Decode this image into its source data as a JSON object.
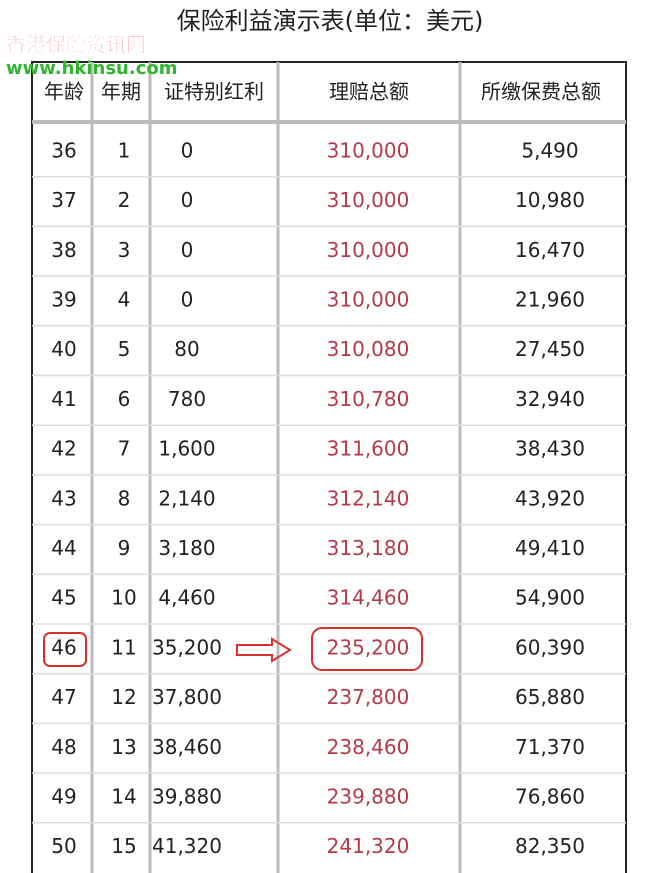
{
  "header": {
    "title": "保险利益演示表(单位：美元)",
    "watermark": "香港保险资讯网",
    "watermark_url": "www.hkinsu.com"
  },
  "table": {
    "columns": [
      "年龄",
      "年期",
      "证特别红利",
      "理赔总额",
      "所缴保费总额"
    ],
    "rows": [
      [
        "36",
        "1",
        "0",
        "310,000",
        "5,490"
      ],
      [
        "37",
        "2",
        "0",
        "310,000",
        "10,980"
      ],
      [
        "38",
        "3",
        "0",
        "310,000",
        "16,470"
      ],
      [
        "39",
        "4",
        "0",
        "310,000",
        "21,960"
      ],
      [
        "40",
        "5",
        "80",
        "310,080",
        "27,450"
      ],
      [
        "41",
        "6",
        "780",
        "310,780",
        "32,940"
      ],
      [
        "42",
        "7",
        "1,600",
        "311,600",
        "38,430"
      ],
      [
        "43",
        "8",
        "2,140",
        "312,140",
        "43,920"
      ],
      [
        "44",
        "9",
        "3,180",
        "313,180",
        "49,410"
      ],
      [
        "45",
        "10",
        "4,460",
        "314,460",
        "54,900"
      ],
      [
        "46",
        "11",
        "35,200",
        "235,200",
        "60,390"
      ],
      [
        "47",
        "12",
        "37,800",
        "237,800",
        "65,880"
      ],
      [
        "48",
        "13",
        "38,460",
        "238,460",
        "71,370"
      ],
      [
        "49",
        "14",
        "39,880",
        "239,880",
        "76,860"
      ],
      [
        "50",
        "15",
        "41,320",
        "241,320",
        "82,350"
      ]
    ]
  }
}
